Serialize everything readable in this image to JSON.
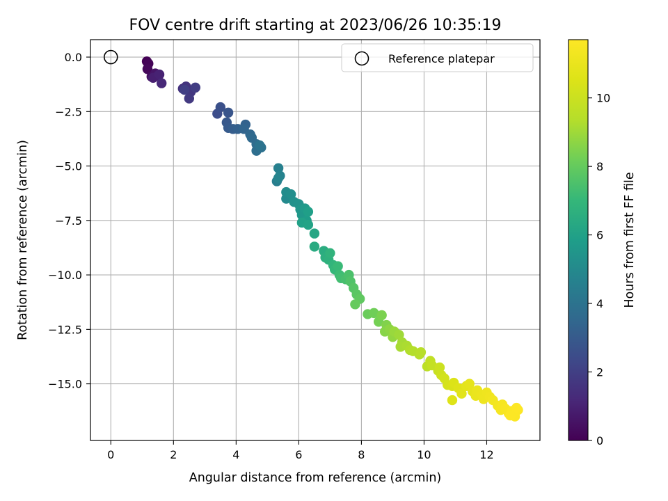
{
  "chart_data": {
    "type": "scatter",
    "title": "FOV centre drift starting at 2023/06/26 10:35:19",
    "xlabel": "Angular distance from reference (arcmin)",
    "ylabel": "Rotation from reference (arcmin)",
    "xlim": [
      -0.65,
      13.7
    ],
    "ylim": [
      -17.6,
      0.8
    ],
    "x_ticks": [
      0,
      2,
      4,
      6,
      8,
      10,
      12
    ],
    "x_tick_labels": [
      "0",
      "2",
      "4",
      "6",
      "8",
      "10",
      "12"
    ],
    "y_ticks": [
      0.0,
      -2.5,
      -5.0,
      -7.5,
      -10.0,
      -12.5,
      -15.0
    ],
    "y_tick_labels": [
      "0.0",
      "−2.5",
      "−5.0",
      "−7.5",
      "−10.0",
      "−12.5",
      "−15.0"
    ],
    "grid": true,
    "legend": {
      "placement": "top-right",
      "entries": [
        "Reference platepar"
      ]
    },
    "reference_point": {
      "x": 0,
      "y": 0
    },
    "colorbar": {
      "label": "Hours from first FF file",
      "colormap": "viridis",
      "range": [
        0,
        11.7
      ],
      "ticks": [
        0,
        2,
        4,
        6,
        8,
        10
      ],
      "tick_labels": [
        "0",
        "2",
        "4",
        "6",
        "8",
        "10"
      ]
    },
    "series": [
      {
        "points": [
          [
            1.15,
            -0.2,
            0.0
          ],
          [
            1.2,
            -0.3,
            0.1
          ],
          [
            1.17,
            -0.55,
            0.2
          ],
          [
            1.3,
            -0.9,
            0.4
          ],
          [
            1.42,
            -0.75,
            0.6
          ],
          [
            1.5,
            -0.85,
            0.8
          ],
          [
            1.35,
            -0.95,
            0.9
          ],
          [
            1.55,
            -0.8,
            1.0
          ],
          [
            1.62,
            -1.2,
            1.2
          ],
          [
            2.3,
            -1.45,
            1.5
          ],
          [
            2.4,
            -1.35,
            1.6
          ],
          [
            2.55,
            -1.6,
            1.7
          ],
          [
            2.5,
            -1.9,
            1.8
          ],
          [
            2.7,
            -1.4,
            1.9
          ],
          [
            2.35,
            -1.5,
            2.0
          ],
          [
            3.4,
            -2.6,
            2.5
          ],
          [
            3.5,
            -2.3,
            2.6
          ],
          [
            3.75,
            -2.55,
            2.8
          ],
          [
            3.7,
            -3.0,
            2.9
          ],
          [
            3.75,
            -3.25,
            3.0
          ],
          [
            3.9,
            -3.3,
            3.1
          ],
          [
            4.05,
            -3.3,
            3.2
          ],
          [
            4.3,
            -3.1,
            3.3
          ],
          [
            4.25,
            -3.3,
            3.4
          ],
          [
            4.45,
            -3.55,
            3.5
          ],
          [
            4.5,
            -3.7,
            3.6
          ],
          [
            4.65,
            -4.0,
            3.7
          ],
          [
            4.65,
            -4.3,
            3.8
          ],
          [
            4.8,
            -4.15,
            3.9
          ],
          [
            4.75,
            -4.05,
            4.0
          ],
          [
            5.3,
            -5.7,
            4.5
          ],
          [
            5.35,
            -5.1,
            4.6
          ],
          [
            5.4,
            -5.45,
            4.7
          ],
          [
            5.35,
            -5.55,
            4.75
          ],
          [
            5.6,
            -6.5,
            5.0
          ],
          [
            5.6,
            -6.2,
            5.1
          ],
          [
            5.75,
            -6.3,
            5.2
          ],
          [
            5.85,
            -6.65,
            5.3
          ],
          [
            6.0,
            -6.75,
            5.4
          ],
          [
            6.05,
            -7.0,
            5.5
          ],
          [
            6.1,
            -7.25,
            5.6
          ],
          [
            6.2,
            -6.95,
            5.7
          ],
          [
            6.25,
            -7.5,
            5.8
          ],
          [
            6.3,
            -7.1,
            5.9
          ],
          [
            6.1,
            -7.6,
            6.0
          ],
          [
            6.3,
            -7.7,
            6.1
          ],
          [
            6.5,
            -8.1,
            6.2
          ],
          [
            6.5,
            -8.7,
            6.4
          ],
          [
            6.8,
            -8.9,
            6.5
          ],
          [
            6.85,
            -9.2,
            6.6
          ],
          [
            6.95,
            -9.3,
            6.7
          ],
          [
            7.0,
            -9.0,
            6.8
          ],
          [
            7.1,
            -9.55,
            6.9
          ],
          [
            7.15,
            -9.75,
            7.0
          ],
          [
            7.25,
            -9.6,
            7.1
          ],
          [
            7.3,
            -10.0,
            7.2
          ],
          [
            7.35,
            -10.15,
            7.3
          ],
          [
            7.5,
            -10.2,
            7.4
          ],
          [
            7.6,
            -10.0,
            7.5
          ],
          [
            7.65,
            -10.3,
            7.6
          ],
          [
            7.75,
            -10.6,
            7.7
          ],
          [
            7.85,
            -10.9,
            7.8
          ],
          [
            7.95,
            -11.1,
            7.9
          ],
          [
            7.8,
            -11.35,
            8.0
          ],
          [
            8.2,
            -11.8,
            8.1
          ],
          [
            8.4,
            -11.75,
            8.2
          ],
          [
            8.55,
            -12.15,
            8.3
          ],
          [
            8.65,
            -11.85,
            8.4
          ],
          [
            8.8,
            -12.3,
            8.5
          ],
          [
            8.75,
            -12.6,
            8.6
          ],
          [
            8.9,
            -12.5,
            8.7
          ],
          [
            9.0,
            -12.85,
            8.8
          ],
          [
            9.05,
            -12.6,
            8.9
          ],
          [
            9.2,
            -12.75,
            9.0
          ],
          [
            9.3,
            -13.1,
            9.1
          ],
          [
            9.25,
            -13.3,
            9.15
          ],
          [
            9.45,
            -13.25,
            9.2
          ],
          [
            9.55,
            -13.45,
            9.3
          ],
          [
            9.65,
            -13.5,
            9.35
          ],
          [
            9.85,
            -13.65,
            9.4
          ],
          [
            9.9,
            -13.55,
            9.45
          ],
          [
            10.1,
            -14.2,
            9.6
          ],
          [
            10.2,
            -13.95,
            9.7
          ],
          [
            10.25,
            -14.15,
            9.8
          ],
          [
            10.45,
            -14.4,
            9.9
          ],
          [
            10.5,
            -14.25,
            10.0
          ],
          [
            10.55,
            -14.6,
            10.1
          ],
          [
            10.65,
            -14.75,
            10.2
          ],
          [
            10.75,
            -15.05,
            10.3
          ],
          [
            10.9,
            -15.1,
            10.4
          ],
          [
            10.95,
            -14.95,
            10.5
          ],
          [
            10.9,
            -15.75,
            10.55
          ],
          [
            11.1,
            -15.2,
            10.6
          ],
          [
            11.2,
            -15.45,
            10.7
          ],
          [
            11.35,
            -15.1,
            10.8
          ],
          [
            11.45,
            -15.0,
            10.85
          ],
          [
            11.55,
            -15.35,
            10.9
          ],
          [
            11.65,
            -15.55,
            11.0
          ],
          [
            11.7,
            -15.3,
            11.05
          ],
          [
            11.85,
            -15.5,
            11.1
          ],
          [
            11.9,
            -15.7,
            11.15
          ],
          [
            12.0,
            -15.4,
            11.2
          ],
          [
            12.1,
            -15.6,
            11.25
          ],
          [
            12.2,
            -15.75,
            11.3
          ],
          [
            12.35,
            -16.0,
            11.35
          ],
          [
            12.45,
            -16.2,
            11.4
          ],
          [
            12.5,
            -15.95,
            11.45
          ],
          [
            12.6,
            -16.15,
            11.5
          ],
          [
            12.7,
            -16.35,
            11.55
          ],
          [
            12.8,
            -16.25,
            11.6
          ],
          [
            12.9,
            -16.5,
            11.62
          ],
          [
            13.0,
            -16.2,
            11.65
          ],
          [
            12.75,
            -16.45,
            11.68
          ],
          [
            12.95,
            -16.1,
            11.7
          ]
        ]
      }
    ]
  }
}
